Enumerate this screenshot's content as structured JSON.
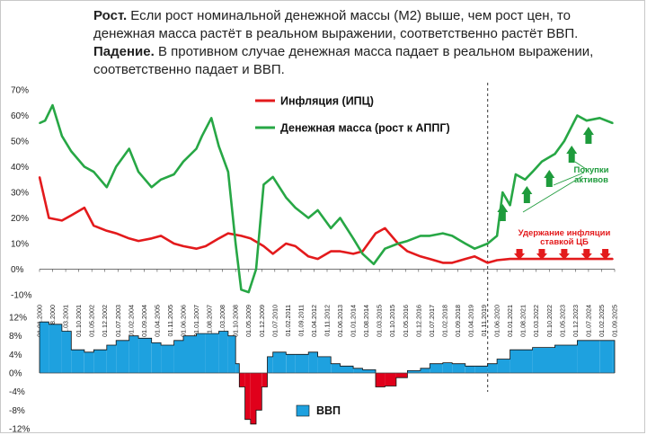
{
  "text": {
    "p1_bold": "Рост.",
    "p1": " Если рост номинальной денежной массы (М2) выше, чем рост цен,  то денежная масса растёт в реальном выражении, соответственно растёт ВВП.",
    "p2_bold": "Падение.",
    "p2": " В противном случае денежная масса падает в реальном выражении, соответственно падает и ВВП."
  },
  "colors": {
    "inflation": "#e31a1c",
    "money": "#27a745",
    "gdp_pos": "#1ea1df",
    "gdp_neg": "#e0001b",
    "annotation_green": "#1e9b3c",
    "annotation_red": "#e31a1c"
  },
  "chart_data": [
    {
      "type": "line",
      "legend_position": "top-center",
      "grid": false,
      "ylim": [
        -10,
        70
      ],
      "yticks": [
        "70%",
        "60%",
        "50%",
        "40%",
        "30%",
        "20%",
        "10%",
        "0%",
        "-10%"
      ],
      "x_range": [
        "2000-01-01",
        "2025-09-01"
      ],
      "x_tick_labels": [
        "01.01.2000",
        "01.08.2000",
        "01.03.2001",
        "01.10.2001",
        "01.05.2002",
        "01.12.2002",
        "01.07.2003",
        "01.02.2004",
        "01.09.2004",
        "01.04.2005",
        "01.11.2005",
        "01.06.2006",
        "01.01.2007",
        "01.08.2007",
        "01.03.2008",
        "01.10.2008",
        "01.05.2009",
        "01.12.2009",
        "01.07.2010",
        "01.02.2011",
        "01.09.2011",
        "01.04.2012",
        "01.11.2012",
        "01.06.2013",
        "01.01.2014",
        "01.08.2014",
        "01.03.2015",
        "01.10.2015",
        "01.05.2016",
        "01.12.2016",
        "01.07.2017",
        "01.02.2018",
        "01.09.2018",
        "01.04.2019",
        "01.11.2019",
        "01.06.2020",
        "01.01.2021",
        "01.08.2021",
        "01.03.2022",
        "01.10.2022",
        "01.05.2023",
        "01.12.2023",
        "01.07.2024",
        "01.02.2025",
        "01.09.2025"
      ],
      "vertical_marker_x": "2020-01-01",
      "series": [
        {
          "name": "Инфляция (ИПЦ)",
          "x": [
            "2000-01",
            "2000-06",
            "2001-01",
            "2001-06",
            "2002-01",
            "2002-06",
            "2003-01",
            "2003-06",
            "2004-01",
            "2004-06",
            "2005-01",
            "2005-06",
            "2006-01",
            "2006-06",
            "2007-01",
            "2007-06",
            "2008-01",
            "2008-06",
            "2009-01",
            "2009-06",
            "2010-01",
            "2010-06",
            "2011-01",
            "2011-06",
            "2012-01",
            "2012-06",
            "2013-01",
            "2013-06",
            "2014-01",
            "2014-06",
            "2015-01",
            "2015-06",
            "2016-01",
            "2016-06",
            "2017-01",
            "2017-06",
            "2018-01",
            "2018-06",
            "2019-01",
            "2019-06",
            "2020-01",
            "2020-06",
            "2021-01",
            "2022-01",
            "2023-01",
            "2024-01",
            "2025-01",
            "2025-08"
          ],
          "y": [
            36,
            20,
            19,
            21,
            24,
            17,
            15,
            14,
            12,
            11,
            12,
            13,
            10,
            9,
            8,
            9,
            12,
            14,
            13,
            12,
            9,
            6,
            10,
            9,
            5,
            4,
            7,
            7,
            6,
            7,
            14,
            16,
            10,
            7,
            5,
            4,
            2.5,
            2.5,
            4,
            5,
            2.5,
            3.5,
            4,
            4,
            4,
            4,
            4,
            4
          ]
        },
        {
          "name": "Денежная масса (рост к АППГ)",
          "x": [
            "2000-01",
            "2000-04",
            "2000-08",
            "2001-01",
            "2001-06",
            "2002-01",
            "2002-06",
            "2003-01",
            "2003-06",
            "2004-01",
            "2004-06",
            "2005-01",
            "2005-06",
            "2006-01",
            "2006-06",
            "2007-01",
            "2007-04",
            "2007-09",
            "2008-01",
            "2008-06",
            "2008-10",
            "2009-01",
            "2009-05",
            "2009-09",
            "2010-01",
            "2010-06",
            "2011-01",
            "2011-06",
            "2012-01",
            "2012-06",
            "2013-01",
            "2013-06",
            "2014-01",
            "2014-06",
            "2014-12",
            "2015-06",
            "2016-01",
            "2016-06",
            "2017-01",
            "2017-06",
            "2018-01",
            "2018-06",
            "2019-01",
            "2019-06",
            "2020-01",
            "2020-06",
            "2020-09",
            "2021-01",
            "2021-04",
            "2021-09",
            "2022-01",
            "2022-06",
            "2023-01",
            "2023-06",
            "2024-01",
            "2024-06",
            "2025-01",
            "2025-08"
          ],
          "y": [
            57,
            58,
            64,
            52,
            46,
            40,
            38,
            32,
            40,
            47,
            38,
            32,
            35,
            37,
            42,
            47,
            52,
            59,
            48,
            38,
            10,
            -8,
            -9,
            0,
            33,
            36,
            28,
            24,
            20,
            23,
            16,
            20,
            12,
            6,
            2,
            8,
            10,
            11,
            13,
            13,
            14,
            13,
            10,
            8,
            10,
            13,
            30,
            25,
            37,
            35,
            38,
            42,
            45,
            50,
            60,
            58,
            59,
            57
          ]
        }
      ]
    },
    {
      "type": "area",
      "ylim": [
        -12,
        12
      ],
      "yticks": [
        "12%",
        "8%",
        "4%",
        "0%",
        "-4%",
        "-8%",
        "-12%"
      ],
      "x_range": [
        "2000-01-01",
        "2025-09-01"
      ],
      "series": [
        {
          "name": "ВВП",
          "x": [
            "2000-01",
            "2000-06",
            "2001-01",
            "2001-06",
            "2002-01",
            "2002-06",
            "2003-01",
            "2003-06",
            "2004-01",
            "2004-06",
            "2005-01",
            "2005-06",
            "2006-01",
            "2006-06",
            "2007-01",
            "2007-06",
            "2008-01",
            "2008-06",
            "2008-10",
            "2008-12",
            "2009-03",
            "2009-06",
            "2009-09",
            "2009-12",
            "2010-03",
            "2010-06",
            "2011-01",
            "2011-06",
            "2012-01",
            "2012-06",
            "2013-01",
            "2013-06",
            "2014-01",
            "2014-06",
            "2015-01",
            "2015-06",
            "2015-12",
            "2016-06",
            "2017-01",
            "2017-06",
            "2018-01",
            "2018-06",
            "2019-01",
            "2019-06",
            "2020-01",
            "2020-06",
            "2021-01",
            "2022-01",
            "2023-01",
            "2024-01",
            "2025-01",
            "2025-08"
          ],
          "y": [
            11,
            10.5,
            9,
            5,
            4.5,
            5,
            6,
            7,
            8,
            7.5,
            6.5,
            6,
            7,
            8,
            8.5,
            8.5,
            9,
            8,
            2,
            -3,
            -10,
            -11,
            -8,
            -3,
            3.5,
            4.5,
            4,
            4,
            4.5,
            3.5,
            2,
            1.5,
            1,
            0.7,
            -3,
            -2.8,
            -1,
            0.5,
            1,
            2,
            2.2,
            2,
            1.5,
            1.5,
            2,
            3,
            5,
            5.5,
            6,
            7,
            7,
            7
          ]
        }
      ]
    }
  ],
  "legend": {
    "inflation": "Инфляция (ИПЦ)",
    "money": "Денежная масса (рост к АППГ)",
    "gdp": "ВВП"
  },
  "annotations": {
    "purchases": [
      "Покупки",
      "активов"
    ],
    "hold": [
      "Удержание инфляции",
      "ставкой ЦБ"
    ]
  }
}
